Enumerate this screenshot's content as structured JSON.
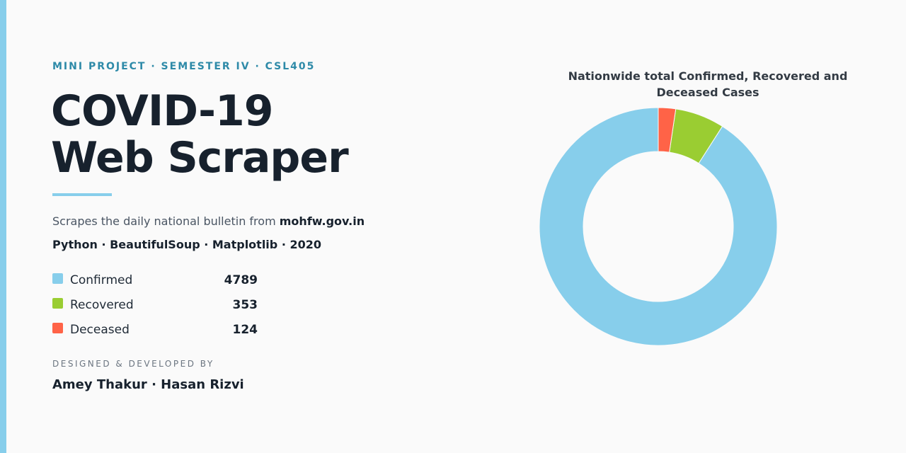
{
  "kicker": "MINI PROJECT · SEMESTER IV · CSL405",
  "title_line1": "COVID-19",
  "title_line2": "Web Scraper",
  "description_prefix": "Scrapes the daily national bulletin from",
  "description_source": "mohfw.gov.in",
  "tech_stack": "Python · BeautifulSoup · Matplotlib · 2020",
  "credits_label": "DESIGNED & DEVELOPED BY",
  "authors": "Amey Thakur · Hasan Rizvi",
  "colors": {
    "accent": "#87ceeb",
    "confirmed": "#87ceeb",
    "recovered": "#9acd32",
    "deceased": "#ff6347"
  },
  "legend": [
    {
      "label": "Confirmed",
      "value": "4789"
    },
    {
      "label": "Recovered",
      "value": "353"
    },
    {
      "label": "Deceased",
      "value": "124"
    }
  ],
  "chart_data": {
    "type": "pie",
    "style": "donut",
    "title": "Nationwide total Confirmed, Recovered and Deceased Cases",
    "labels": [
      "Confirmed",
      "Recovered",
      "Deceased"
    ],
    "values": [
      4789,
      353,
      124
    ],
    "colors": [
      "#87ceeb",
      "#9acd32",
      "#ff6347"
    ],
    "start_angle": "top",
    "direction": "clockwise"
  }
}
